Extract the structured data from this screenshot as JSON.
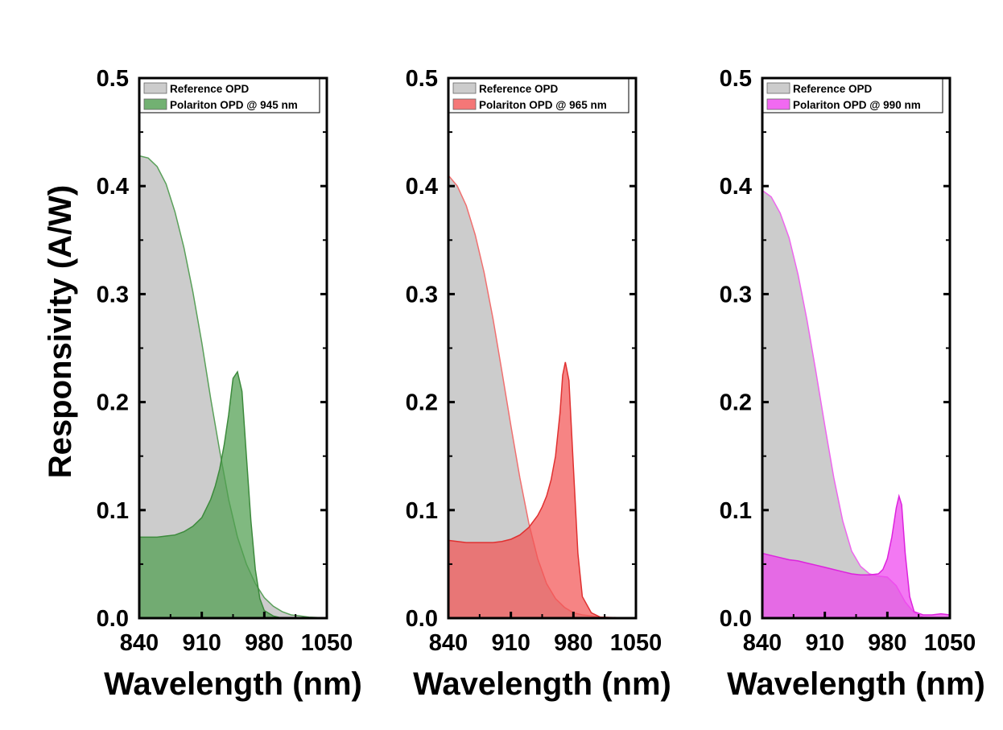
{
  "ylabel": "Responsivity (A/W)",
  "chart_data": [
    {
      "type": "area",
      "xlabel": "Wavelength (nm)",
      "ylabel": "Responsivity (A/W)",
      "xlim": [
        840,
        1050
      ],
      "ylim": [
        0,
        0.5
      ],
      "xticks": [
        "840",
        "910",
        "980",
        "1050"
      ],
      "yticks": [
        "0.0",
        "0.1",
        "0.2",
        "0.3",
        "0.4",
        "0.5"
      ],
      "legend": "top-left",
      "series": [
        {
          "name": "Reference OPD",
          "fill": "#cccccc",
          "stroke": "#5aa05a",
          "x": [
            840,
            850,
            860,
            870,
            880,
            890,
            900,
            910,
            920,
            930,
            940,
            950,
            960,
            970,
            980,
            990,
            1000,
            1010,
            1020,
            1030,
            1040,
            1050
          ],
          "y": [
            0.428,
            0.426,
            0.418,
            0.402,
            0.376,
            0.343,
            0.302,
            0.255,
            0.203,
            0.155,
            0.11,
            0.075,
            0.05,
            0.032,
            0.019,
            0.011,
            0.006,
            0.003,
            0.002,
            0.001,
            0.0005,
            0.0
          ]
        },
        {
          "name": "Polariton OPD @ 945 nm",
          "fill": "#4f9e4f",
          "stroke": "#3c8a3c",
          "x": [
            840,
            850,
            860,
            870,
            880,
            890,
            900,
            910,
            920,
            925,
            930,
            935,
            940,
            945,
            950,
            955,
            960,
            965,
            970,
            975,
            980,
            990,
            1000,
            1050
          ],
          "y": [
            0.075,
            0.075,
            0.075,
            0.076,
            0.077,
            0.08,
            0.085,
            0.093,
            0.11,
            0.122,
            0.138,
            0.16,
            0.188,
            0.222,
            0.228,
            0.21,
            0.15,
            0.09,
            0.045,
            0.018,
            0.007,
            0.002,
            0.0,
            0.0
          ]
        }
      ]
    },
    {
      "type": "area",
      "xlabel": "Wavelength (nm)",
      "ylabel": "Responsivity (A/W)",
      "xlim": [
        840,
        1050
      ],
      "ylim": [
        0,
        0.5
      ],
      "xticks": [
        "840",
        "910",
        "980",
        "1050"
      ],
      "yticks": [
        "0.0",
        "0.1",
        "0.2",
        "0.3",
        "0.4",
        "0.5"
      ],
      "legend": "top-left",
      "series": [
        {
          "name": "Reference OPD",
          "fill": "#cccccc",
          "stroke": "#f07070",
          "x": [
            840,
            850,
            860,
            870,
            880,
            890,
            900,
            910,
            920,
            930,
            940,
            950,
            960,
            970,
            980,
            990,
            1000,
            1010,
            1020,
            1050
          ],
          "y": [
            0.41,
            0.4,
            0.382,
            0.355,
            0.32,
            0.277,
            0.228,
            0.178,
            0.13,
            0.088,
            0.055,
            0.032,
            0.018,
            0.01,
            0.005,
            0.003,
            0.002,
            0.001,
            0.0005,
            0.0
          ]
        },
        {
          "name": "Polariton OPD @ 965 nm",
          "fill": "#f25555",
          "stroke": "#e03030",
          "x": [
            840,
            850,
            860,
            870,
            880,
            890,
            900,
            910,
            920,
            930,
            940,
            945,
            950,
            955,
            960,
            965,
            968,
            971,
            975,
            980,
            985,
            990,
            1000,
            1010,
            1050
          ],
          "y": [
            0.072,
            0.071,
            0.07,
            0.07,
            0.07,
            0.07,
            0.071,
            0.073,
            0.077,
            0.084,
            0.095,
            0.103,
            0.113,
            0.128,
            0.15,
            0.19,
            0.225,
            0.237,
            0.22,
            0.14,
            0.06,
            0.02,
            0.005,
            0.001,
            0.0
          ]
        }
      ]
    },
    {
      "type": "area",
      "xlabel": "Wavelength (nm)",
      "ylabel": "Responsivity (A/W)",
      "xlim": [
        840,
        1050
      ],
      "ylim": [
        0,
        0.5
      ],
      "xticks": [
        "840",
        "910",
        "980",
        "1050"
      ],
      "yticks": [
        "0.0",
        "0.1",
        "0.2",
        "0.3",
        "0.4",
        "0.5"
      ],
      "legend": "top-left",
      "series": [
        {
          "name": "Reference OPD",
          "fill": "#cccccc",
          "stroke": "#ee66ee",
          "x": [
            840,
            850,
            860,
            870,
            880,
            890,
            900,
            910,
            920,
            930,
            940,
            950,
            960,
            970,
            980,
            990,
            1000,
            1010,
            1020,
            1050
          ],
          "y": [
            0.396,
            0.39,
            0.375,
            0.352,
            0.318,
            0.276,
            0.228,
            0.178,
            0.13,
            0.09,
            0.062,
            0.048,
            0.041,
            0.039,
            0.038,
            0.03,
            0.015,
            0.005,
            0.001,
            0.0
          ]
        },
        {
          "name": "Polariton OPD @ 990 nm",
          "fill": "#ee44ee",
          "stroke": "#dd22dd",
          "x": [
            840,
            850,
            860,
            870,
            880,
            890,
            900,
            910,
            920,
            930,
            940,
            950,
            960,
            970,
            975,
            980,
            985,
            990,
            993,
            996,
            1000,
            1005,
            1010,
            1020,
            1030,
            1040,
            1050
          ],
          "y": [
            0.06,
            0.058,
            0.056,
            0.054,
            0.053,
            0.051,
            0.049,
            0.047,
            0.045,
            0.043,
            0.041,
            0.04,
            0.04,
            0.041,
            0.045,
            0.055,
            0.075,
            0.102,
            0.113,
            0.105,
            0.06,
            0.02,
            0.006,
            0.003,
            0.003,
            0.004,
            0.003
          ]
        }
      ]
    }
  ]
}
